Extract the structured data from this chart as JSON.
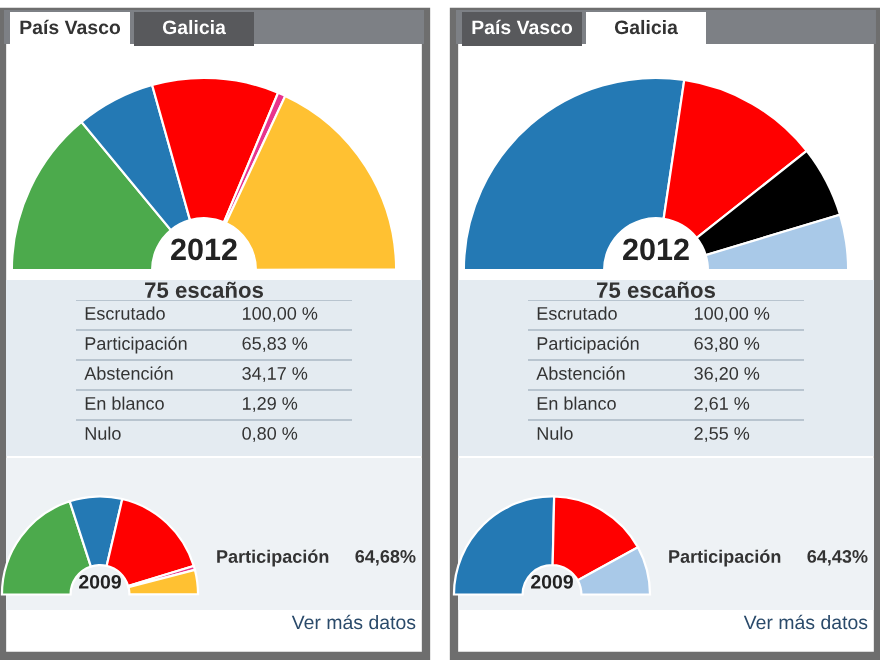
{
  "chart_data": [
    {
      "type": "other",
      "annotations": [
        "País Vasco",
        "Galicia"
      ]
    },
    {
      "type": "donut",
      "title": "2012",
      "subtitle": "75 escaños",
      "categories": [
        null,
        null,
        null,
        null,
        null
      ],
      "values": [
        28.0,
        13.3,
        21.3,
        1.3,
        36.0
      ],
      "colors": [
        "#4caa4c",
        "#2479b4",
        "#ff0000",
        "#e8338c",
        "#ffc132"
      ]
    },
    {
      "type": "other",
      "annotations": [
        "Escrutado",
        "100,00 %",
        "Participación",
        "65,83 %",
        "Abstención",
        "34,17 %",
        "En blanco",
        "1,29 %",
        "Nulo",
        "0,80 %"
      ]
    },
    {
      "type": "donut",
      "title": "2009",
      "categories": [
        null,
        null,
        null,
        null,
        null
      ],
      "values": [
        40.0,
        17.3,
        33.3,
        1.3,
        8.0
      ],
      "colors": [
        "#4caa4c",
        "#2479b4",
        "#ff0000",
        "#e8338c",
        "#ffc132"
      ],
      "annotations": [
        "Participación",
        "64,68%",
        "Ver más datos"
      ]
    },
    {
      "type": "other",
      "annotations": [
        "País Vasco",
        "Galicia"
      ]
    },
    {
      "type": "donut",
      "title": "2012",
      "subtitle": "75 escaños",
      "categories": [
        null,
        null,
        null,
        null
      ],
      "values": [
        54.7,
        24.0,
        12.0,
        9.3
      ],
      "colors": [
        "#2479b4",
        "#ff0000",
        "#000000",
        "#a9c9e8"
      ]
    },
    {
      "type": "other",
      "annotations": [
        "Escrutado",
        "100,00 %",
        "Participación",
        "63,80 %",
        "Abstención",
        "36,20 %",
        "En blanco",
        "2,61 %",
        "Nulo",
        "2,55 %"
      ]
    },
    {
      "type": "donut",
      "title": "2009",
      "categories": [
        null,
        null,
        null
      ],
      "values": [
        50.7,
        33.3,
        16.0
      ],
      "colors": [
        "#2479b4",
        "#ff0000",
        "#a9c9e8"
      ],
      "annotations": [
        "Participación",
        "64,43%",
        "Ver más datos"
      ]
    }
  ]
}
